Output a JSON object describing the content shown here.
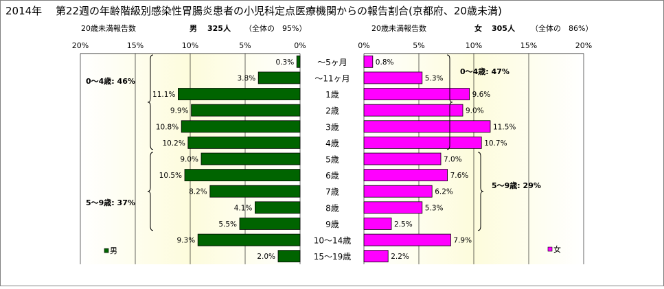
{
  "title": "2014年　 第22週の年齢階級別感染性胃腸炎患者の小児科定点医療機関からの報告割合(京都府、20歳未満)",
  "colors": {
    "male": "#006400",
    "female": "#ff00ff",
    "panel_bg": "#fdfde6",
    "grid": "#000000"
  },
  "chart_data": [
    {
      "type": "bar",
      "orientation": "horizontal",
      "direction": "right-to-left",
      "header_left": "20歳未満報告数",
      "header_sex": "男",
      "header_count": "325人",
      "header_share": "（全体の　95%）",
      "ticks": [
        "20%",
        "15%",
        "10%",
        "5%",
        "0%"
      ],
      "xlim": [
        0,
        20
      ],
      "legend": "男",
      "legend_position": "bottom-left",
      "categories": [
        "～5ヶ月",
        "～11ヶ月",
        "1歳",
        "2歳",
        "3歳",
        "4歳",
        "5歳",
        "6歳",
        "7歳",
        "8歳",
        "9歳",
        "10～14歳",
        "15～19歳"
      ],
      "values": [
        0.3,
        3.8,
        11.1,
        9.9,
        10.8,
        10.2,
        9.0,
        10.5,
        8.2,
        4.1,
        5.5,
        9.3,
        2.0
      ],
      "labels": [
        "0.3%",
        "3.8%",
        "11.1%",
        "9.9%",
        "10.8%",
        "10.2%",
        "9.0%",
        "10.5%",
        "8.2%",
        "4.1%",
        "5.5%",
        "9.3%",
        "2.0%"
      ],
      "groups": [
        {
          "label": "0～4歳: 46%",
          "from": 0,
          "to": 5
        },
        {
          "label": "5～9歳: 37%",
          "from": 6,
          "to": 10
        }
      ]
    },
    {
      "type": "bar",
      "orientation": "horizontal",
      "direction": "left-to-right",
      "header_left": "20歳未満報告数",
      "header_sex": "女",
      "header_count": "305人",
      "header_share": "（全体の　86%）",
      "ticks": [
        "0%",
        "5%",
        "10%",
        "15%",
        "20%"
      ],
      "xlim": [
        0,
        20
      ],
      "legend": "女",
      "legend_position": "bottom-right",
      "categories": [
        "～5ヶ月",
        "～11ヶ月",
        "1歳",
        "2歳",
        "3歳",
        "4歳",
        "5歳",
        "6歳",
        "7歳",
        "8歳",
        "9歳",
        "10～14歳",
        "15～19歳"
      ],
      "values": [
        0.8,
        5.3,
        9.6,
        9.0,
        11.5,
        10.7,
        7.0,
        7.6,
        6.2,
        5.3,
        2.5,
        7.9,
        2.2
      ],
      "labels": [
        "0.8%",
        "5.3%",
        "9.6%",
        "9.0%",
        "11.5%",
        "10.7%",
        "7.0%",
        "7.6%",
        "6.2%",
        "5.3%",
        "2.5%",
        "7.9%",
        "2.2%"
      ],
      "groups": [
        {
          "label": "0～4歳: 47%",
          "from": 0,
          "to": 5
        },
        {
          "label": "5～9歳: 29%",
          "from": 6,
          "to": 10
        }
      ]
    }
  ]
}
